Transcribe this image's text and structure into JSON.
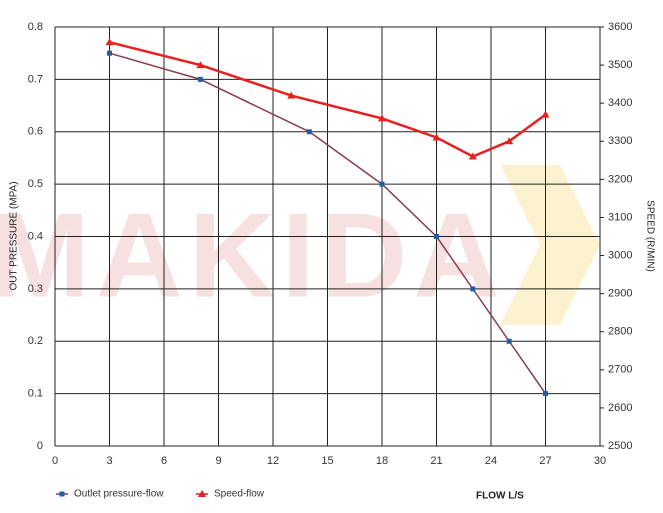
{
  "chart_data": {
    "type": "line",
    "watermark": "MAKIDA",
    "x_label": "FLOW L/S",
    "y_label": "OUT PRESSURE (MPA)",
    "y2_label": "SPEED (R/MIN)",
    "xlim": [
      0,
      30
    ],
    "xticks": [
      0,
      3,
      6,
      9,
      12,
      15,
      18,
      21,
      24,
      27,
      30
    ],
    "ylim": [
      0,
      0.8
    ],
    "yticks": [
      0,
      0.1,
      0.2,
      0.3,
      0.4,
      0.5,
      0.6,
      0.7,
      0.8
    ],
    "y2lim": [
      2500,
      3600
    ],
    "y2ticks": [
      2500,
      2600,
      2700,
      2800,
      2900,
      3000,
      3100,
      3200,
      3300,
      3400,
      3500,
      3600
    ],
    "grid": true,
    "series": [
      {
        "name": "Outlet pressure-flow",
        "color": "#8b3a4a",
        "marker_color": "#1f5fa8",
        "marker": "square",
        "x": [
          3,
          8,
          14,
          18,
          21,
          23,
          25,
          27
        ],
        "values": [
          0.75,
          0.7,
          0.6,
          0.5,
          0.4,
          0.3,
          0.2,
          0.1
        ]
      },
      {
        "name": "Speed-flow",
        "color": "#e82020",
        "marker_color": "#e82020",
        "marker": "triangle",
        "axis": "y2",
        "x": [
          3,
          8,
          13,
          18,
          21,
          23,
          25,
          27
        ],
        "values": [
          3560,
          3500,
          3420,
          3360,
          3310,
          3260,
          3300,
          3370
        ]
      }
    ]
  }
}
